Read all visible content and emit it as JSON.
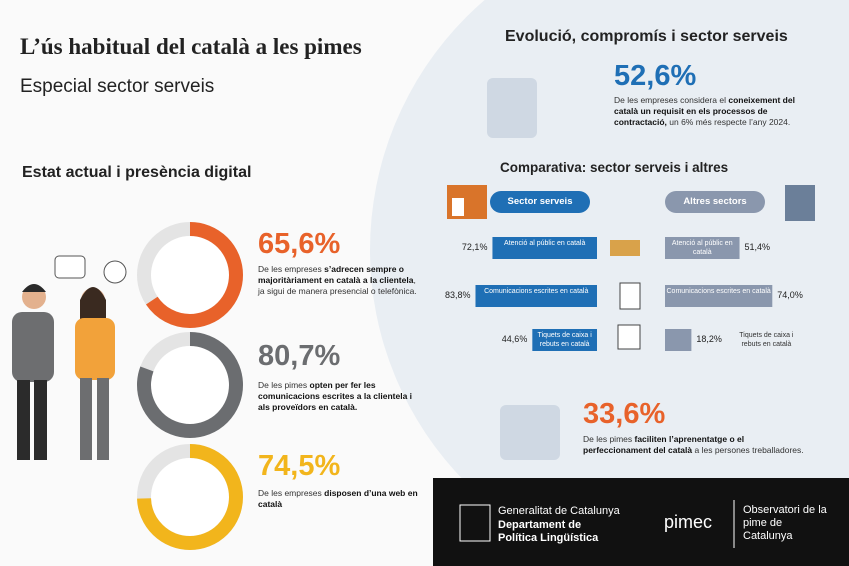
{
  "header": {
    "title": "L’ús habitual del català a les pimes",
    "subtitle": "Especial sector serveis"
  },
  "current": {
    "heading": "Estat actual i presència digital",
    "stats": [
      {
        "value": 65.6,
        "label": "65,6%",
        "color": "#e8622a",
        "text": [
          "De les empreses ",
          "s’adrecen sempre o majoritàriament en català a la clientela",
          ", ja sigui de manera presencial o telefònica."
        ]
      },
      {
        "value": 80.7,
        "label": "80,7%",
        "color": "#6b6d70",
        "text": [
          "De les pimes ",
          "opten per fer les comunicacions escrites a la clientela i als proveïdors en català."
        ]
      },
      {
        "value": 74.5,
        "label": "74,5%",
        "color": "#f2b51c",
        "text": [
          "De les empreses ",
          "disposen d’una web en català"
        ]
      }
    ]
  },
  "evolution": {
    "heading": "Evolució, compromís i sector serveis",
    "stat": {
      "label": "52,6%",
      "color": "#1f6fb5",
      "text": [
        "De les empreses considera el ",
        "coneixement del català un requisit en els processos de contractació,",
        " un 6% més respecte l’any 2024."
      ]
    }
  },
  "comparison": {
    "heading": "Comparativa: sector serveis i altres",
    "groups": [
      {
        "name": "Sector serveis",
        "color": "#1f6fb5"
      },
      {
        "name": "Altres sectors",
        "color": "#8a97ad"
      }
    ],
    "rows": [
      {
        "item": "Atenció al públic en català",
        "values": [
          72.1,
          51.4
        ],
        "value_labels": [
          "72,1%",
          "51,4%"
        ]
      },
      {
        "item": "Comunicacions escrites en català",
        "values": [
          83.8,
          74.0
        ],
        "value_labels": [
          "83,8%",
          "74,0%"
        ]
      },
      {
        "item": "Tiquets de caixa i rebuts en català",
        "values": [
          44.6,
          18.2
        ],
        "value_labels": [
          "44,6%",
          "18,2%"
        ]
      }
    ]
  },
  "training": {
    "label": "33,6%",
    "color": "#e8622a",
    "text": [
      "De les pimes ",
      "faciliten l’aprenentatge o el perfeccionament del català",
      " a les persones treballadores."
    ]
  },
  "footer": {
    "gov": "Generalitat de Catalunya",
    "dept": "Departament de Política Lingüística",
    "pimec": "pimec",
    "observatori": "Observatori de la pime de Catalunya"
  }
}
